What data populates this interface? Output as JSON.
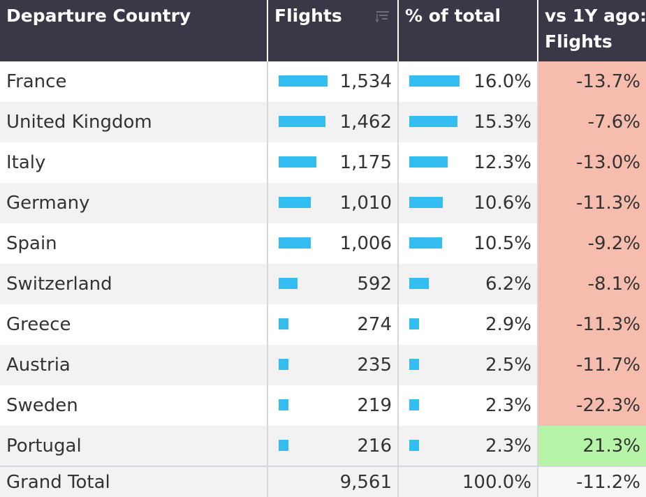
{
  "headers": {
    "country": "Departure Country",
    "flights": "Flights",
    "pct": "% of total",
    "yoy_line1": "vs 1Y ago:",
    "yoy_line2": "Flights"
  },
  "rows": [
    {
      "country": "France",
      "flights": "1,534",
      "flights_value": 1534,
      "pct": "16.0%",
      "pct_value": 16.0,
      "yoy": "-13.7%",
      "yoy_sign": "neg"
    },
    {
      "country": "United Kingdom",
      "flights": "1,462",
      "flights_value": 1462,
      "pct": "15.3%",
      "pct_value": 15.3,
      "yoy": "-7.6%",
      "yoy_sign": "neg"
    },
    {
      "country": "Italy",
      "flights": "1,175",
      "flights_value": 1175,
      "pct": "12.3%",
      "pct_value": 12.3,
      "yoy": "-13.0%",
      "yoy_sign": "neg"
    },
    {
      "country": "Germany",
      "flights": "1,010",
      "flights_value": 1010,
      "pct": "10.6%",
      "pct_value": 10.6,
      "yoy": "-11.3%",
      "yoy_sign": "neg"
    },
    {
      "country": "Spain",
      "flights": "1,006",
      "flights_value": 1006,
      "pct": "10.5%",
      "pct_value": 10.5,
      "yoy": "-9.2%",
      "yoy_sign": "neg"
    },
    {
      "country": "Switzerland",
      "flights": "592",
      "flights_value": 592,
      "pct": "6.2%",
      "pct_value": 6.2,
      "yoy": "-8.1%",
      "yoy_sign": "neg"
    },
    {
      "country": "Greece",
      "flights": "274",
      "flights_value": 274,
      "pct": "2.9%",
      "pct_value": 2.9,
      "yoy": "-11.3%",
      "yoy_sign": "neg"
    },
    {
      "country": "Austria",
      "flights": "235",
      "flights_value": 235,
      "pct": "2.5%",
      "pct_value": 2.5,
      "yoy": "-11.7%",
      "yoy_sign": "neg"
    },
    {
      "country": "Sweden",
      "flights": "219",
      "flights_value": 219,
      "pct": "2.3%",
      "pct_value": 2.3,
      "yoy": "-22.3%",
      "yoy_sign": "neg"
    },
    {
      "country": "Portugal",
      "flights": "216",
      "flights_value": 216,
      "pct": "2.3%",
      "pct_value": 2.3,
      "yoy": "21.3%",
      "yoy_sign": "pos"
    }
  ],
  "total": {
    "label": "Grand Total",
    "flights": "9,561",
    "pct": "100.0%",
    "yoy": "-11.2%"
  },
  "icons": {
    "flights_sort": "sort-descending-icon"
  },
  "colors": {
    "header_bg": "#3a3846",
    "bar": "#33bdf0",
    "negative": "#f6bcae",
    "positive": "#b6f4a8"
  }
}
